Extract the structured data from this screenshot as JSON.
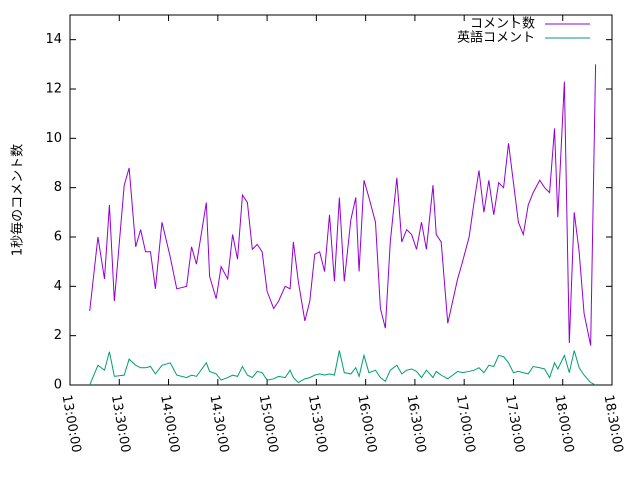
{
  "chart_data": {
    "type": "line",
    "y_label": "1秒毎のコメント数",
    "x": [
      "13:12:00",
      "13:17:00",
      "13:21:00",
      "13:24:00",
      "13:27:00",
      "13:33:00",
      "13:36:00",
      "13:40:00",
      "13:43:00",
      "13:46:00",
      "13:49:00",
      "13:52:00",
      "13:56:00",
      "14:01:00",
      "14:05:00",
      "14:11:00",
      "14:14:00",
      "14:17:00",
      "14:23:00",
      "14:25:00",
      "14:29:00",
      "14:32:00",
      "14:36:00",
      "14:39:00",
      "14:42:00",
      "14:45:00",
      "14:48:00",
      "14:51:00",
      "14:54:00",
      "14:57:00",
      "15:00:00",
      "15:04:00",
      "15:07:00",
      "15:11:00",
      "15:14:00",
      "15:16:00",
      "15:19:00",
      "15:23:00",
      "15:26:00",
      "15:29:00",
      "15:32:00",
      "15:35:00",
      "15:38:00",
      "15:41:00",
      "15:44:00",
      "15:47:00",
      "15:51:00",
      "15:54:00",
      "15:56:00",
      "15:59:00",
      "16:02:00",
      "16:06:00",
      "16:09:00",
      "16:12:00",
      "16:15:00",
      "16:19:00",
      "16:22:00",
      "16:25:00",
      "16:28:00",
      "16:31:00",
      "16:34:00",
      "16:37:00",
      "16:41:00",
      "16:43:00",
      "16:46:00",
      "16:50:00",
      "16:53:00",
      "16:56:00",
      "16:59:00",
      "17:03:00",
      "17:06:00",
      "17:09:00",
      "17:12:00",
      "17:15:00",
      "17:18:00",
      "17:21:00",
      "17:24:00",
      "17:27:00",
      "17:30:00",
      "17:33:00",
      "17:36:00",
      "17:39:00",
      "17:42:00",
      "17:46:00",
      "17:49:00",
      "17:52:00",
      "17:55:00",
      "17:57:00",
      "18:01:00",
      "18:04:00",
      "18:07:00",
      "18:10:00",
      "18:13:00",
      "18:17:00",
      "18:20:00"
    ],
    "series": [
      {
        "name": "コメント数",
        "color": "#9400d3",
        "values": [
          3.0,
          6.0,
          4.3,
          7.3,
          3.4,
          8.1,
          8.8,
          5.6,
          6.3,
          5.4,
          5.4,
          3.9,
          6.6,
          5.2,
          3.9,
          4.0,
          5.6,
          4.9,
          7.4,
          4.4,
          3.5,
          4.8,
          4.3,
          6.1,
          5.1,
          7.7,
          7.4,
          5.5,
          5.7,
          5.4,
          3.8,
          3.1,
          3.4,
          4.0,
          3.9,
          5.8,
          4.2,
          2.6,
          3.4,
          5.3,
          5.4,
          4.6,
          6.9,
          4.2,
          7.6,
          4.2,
          6.7,
          7.6,
          4.6,
          8.3,
          7.6,
          6.6,
          3.1,
          2.3,
          5.8,
          8.4,
          5.8,
          6.3,
          6.1,
          5.5,
          6.6,
          5.5,
          8.1,
          6.1,
          5.8,
          2.5,
          3.4,
          4.3,
          5.0,
          6.0,
          7.4,
          8.7,
          7.0,
          8.3,
          6.9,
          8.2,
          8.0,
          9.8,
          8.2,
          6.6,
          6.1,
          7.3,
          7.8,
          8.3,
          8.0,
          7.8,
          10.4,
          6.8,
          12.3,
          1.7,
          7.0,
          5.4,
          2.9,
          1.6,
          13.0
        ]
      },
      {
        "name": "英語コメント",
        "color": "#009e73",
        "values": [
          0.0,
          0.8,
          0.6,
          1.35,
          0.35,
          0.4,
          1.05,
          0.8,
          0.7,
          0.7,
          0.75,
          0.45,
          0.8,
          0.9,
          0.4,
          0.3,
          0.4,
          0.35,
          0.9,
          0.55,
          0.45,
          0.2,
          0.3,
          0.4,
          0.35,
          0.75,
          0.4,
          0.3,
          0.55,
          0.5,
          0.2,
          0.25,
          0.35,
          0.3,
          0.6,
          0.3,
          0.1,
          0.25,
          0.3,
          0.4,
          0.45,
          0.4,
          0.45,
          0.4,
          1.4,
          0.5,
          0.45,
          0.7,
          0.35,
          1.2,
          0.5,
          0.6,
          0.3,
          0.15,
          0.6,
          0.8,
          0.45,
          0.6,
          0.65,
          0.55,
          0.3,
          0.6,
          0.3,
          0.55,
          0.4,
          0.25,
          0.4,
          0.55,
          0.5,
          0.55,
          0.6,
          0.7,
          0.5,
          0.8,
          0.75,
          1.2,
          1.15,
          0.9,
          0.5,
          0.55,
          0.5,
          0.45,
          0.75,
          0.7,
          0.65,
          0.3,
          0.9,
          0.65,
          1.2,
          0.5,
          1.4,
          0.7,
          0.4,
          0.1,
          0.0
        ]
      }
    ],
    "xlim": [
      "13:00:00",
      "18:30:00"
    ],
    "xticks": [
      "13:00:00",
      "13:30:00",
      "14:00:00",
      "14:30:00",
      "15:00:00",
      "15:30:00",
      "16:00:00",
      "16:30:00",
      "17:00:00",
      "17:30:00",
      "18:00:00",
      "18:30:00"
    ],
    "ylim": [
      0,
      15
    ],
    "yticks": [
      0,
      2,
      4,
      6,
      8,
      10,
      12,
      14
    ],
    "legend": "top-right"
  }
}
